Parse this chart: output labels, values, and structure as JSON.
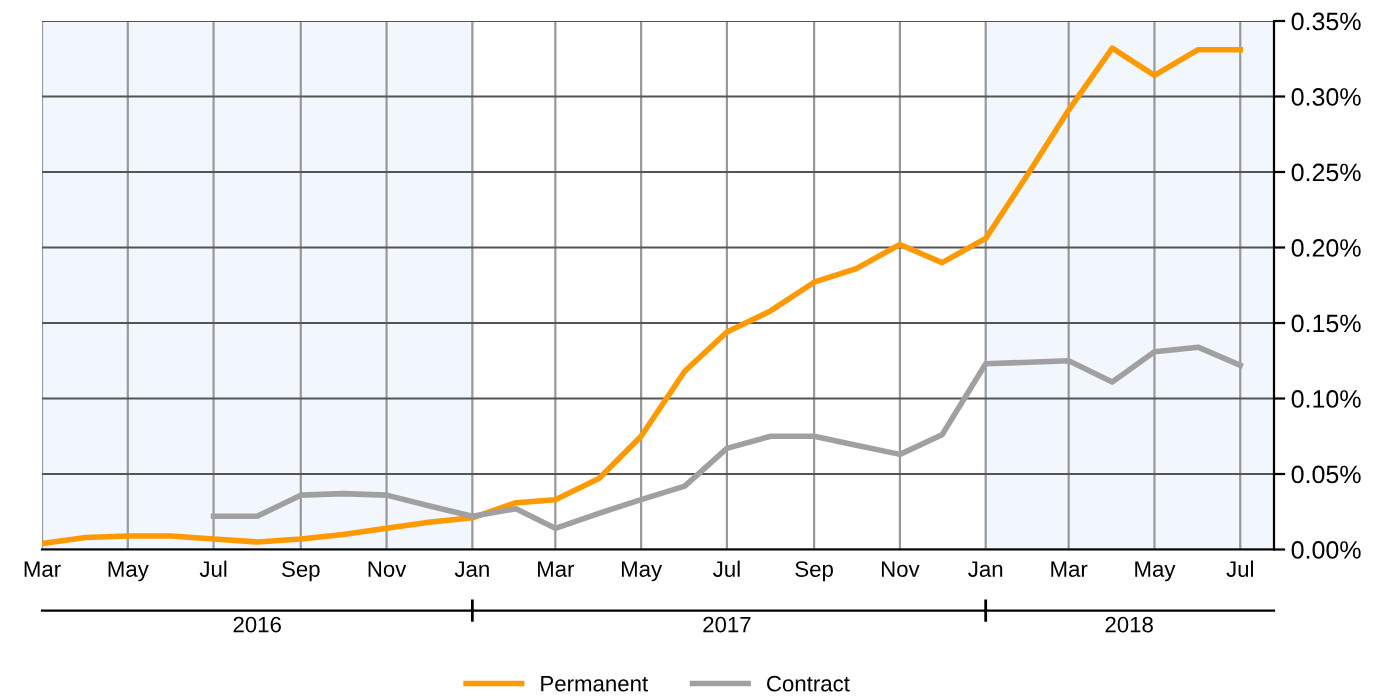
{
  "chart_data": {
    "type": "line",
    "x": [
      "2016-03",
      "2016-04",
      "2016-05",
      "2016-06",
      "2016-07",
      "2016-08",
      "2016-09",
      "2016-10",
      "2016-11",
      "2016-12",
      "2017-01",
      "2017-02",
      "2017-03",
      "2017-04",
      "2017-05",
      "2017-06",
      "2017-07",
      "2017-08",
      "2017-09",
      "2017-10",
      "2017-11",
      "2017-12",
      "2018-01",
      "2018-02",
      "2018-03",
      "2018-04",
      "2018-05",
      "2018-06",
      "2018-07"
    ],
    "series": [
      {
        "name": "Permanent",
        "color": "#ff9900",
        "values": [
          0.004,
          0.008,
          0.009,
          0.009,
          0.007,
          0.005,
          0.007,
          0.01,
          0.014,
          0.018,
          0.021,
          0.031,
          0.033,
          0.047,
          0.075,
          0.118,
          0.144,
          0.158,
          0.177,
          0.186,
          0.202,
          0.19,
          0.206,
          0.25,
          0.291,
          0.332,
          0.314,
          0.331,
          0.331
        ]
      },
      {
        "name": "Contract",
        "color": "#a0a0a0",
        "values": [
          null,
          null,
          null,
          null,
          0.022,
          0.022,
          0.036,
          0.037,
          0.036,
          0.029,
          0.022,
          0.027,
          0.014,
          0.024,
          0.033,
          0.042,
          0.067,
          0.075,
          0.075,
          0.069,
          0.063,
          0.076,
          0.123,
          0.124,
          0.125,
          0.111,
          0.131,
          0.134,
          0.122
        ]
      }
    ],
    "xlim": [
      "2016-03-01",
      "2018-07-25"
    ],
    "xticks": [
      {
        "value": "2016-03-01",
        "label": "Mar"
      },
      {
        "value": "2016-05-01",
        "label": "May"
      },
      {
        "value": "2016-07-01",
        "label": "Jul"
      },
      {
        "value": "2016-09-01",
        "label": "Sep"
      },
      {
        "value": "2016-11-01",
        "label": "Nov"
      },
      {
        "value": "2017-01-01",
        "label": "Jan"
      },
      {
        "value": "2017-03-01",
        "label": "Mar"
      },
      {
        "value": "2017-05-01",
        "label": "May"
      },
      {
        "value": "2017-07-01",
        "label": "Jul"
      },
      {
        "value": "2017-09-01",
        "label": "Sep"
      },
      {
        "value": "2017-11-01",
        "label": "Nov"
      },
      {
        "value": "2018-01-01",
        "label": "Jan"
      },
      {
        "value": "2018-03-01",
        "label": "Mar"
      },
      {
        "value": "2018-05-01",
        "label": "May"
      },
      {
        "value": "2018-07-01",
        "label": "Jul"
      }
    ],
    "x2lim": [
      "2016-03-01",
      "2018-07-25"
    ],
    "x2ticks": [
      {
        "value": "2016-08-01",
        "label": "2016"
      },
      {
        "value": "2017-01-01",
        "label": null
      },
      {
        "value": "2017-07-01",
        "label": "2017"
      },
      {
        "value": "2018-01-01",
        "label": null
      },
      {
        "value": "2018-04-13",
        "label": "2018"
      }
    ],
    "ylim": [
      0,
      0.35
    ],
    "yticks": [
      {
        "value": 0,
        "label": "0.00%"
      },
      {
        "value": 0.05,
        "label": "0.05%"
      },
      {
        "value": 0.1,
        "label": "0.10%"
      },
      {
        "value": 0.15,
        "label": "0.15%"
      },
      {
        "value": 0.2,
        "label": "0.20%"
      },
      {
        "value": 0.25,
        "label": "0.25%"
      },
      {
        "value": 0.3,
        "label": "0.30%"
      },
      {
        "value": 0.35,
        "label": "0.35%"
      }
    ],
    "bands": [
      {
        "axis": "x",
        "from": "2016-03-01",
        "to": "2017-01-01",
        "color": "#f2f7fe"
      },
      {
        "axis": "x",
        "from": "2018-01-01",
        "to": "2018-07-25",
        "color": "#f2f7fe"
      }
    ],
    "grid": true,
    "legend": "bottom",
    "marker": "none",
    "line_style": "solid"
  }
}
